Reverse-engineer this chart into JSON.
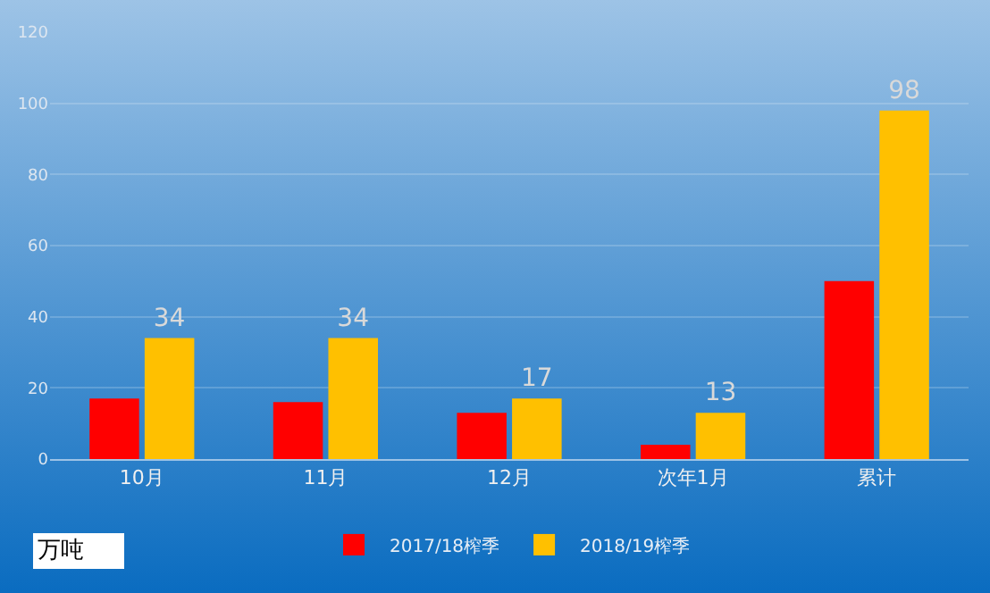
{
  "chart_data": {
    "type": "bar",
    "categories": [
      "10月",
      "11月",
      "12月",
      "次年1月",
      "累计"
    ],
    "series": [
      {
        "name": "2017/18榨季",
        "color": "#ff0000",
        "values": [
          17,
          16,
          13,
          4,
          50
        ]
      },
      {
        "name": "2018/19榨季",
        "color": "#ffc000",
        "values": [
          34,
          34,
          17,
          13,
          98
        ],
        "value_labels": [
          "34",
          "34",
          "17",
          "13",
          "98"
        ]
      }
    ],
    "ylim": [
      0,
      120
    ],
    "yticks": [
      0,
      20,
      40,
      60,
      80,
      100,
      120
    ],
    "grid": "y",
    "legend": "bottom",
    "annotations": [
      "万吨"
    ]
  }
}
